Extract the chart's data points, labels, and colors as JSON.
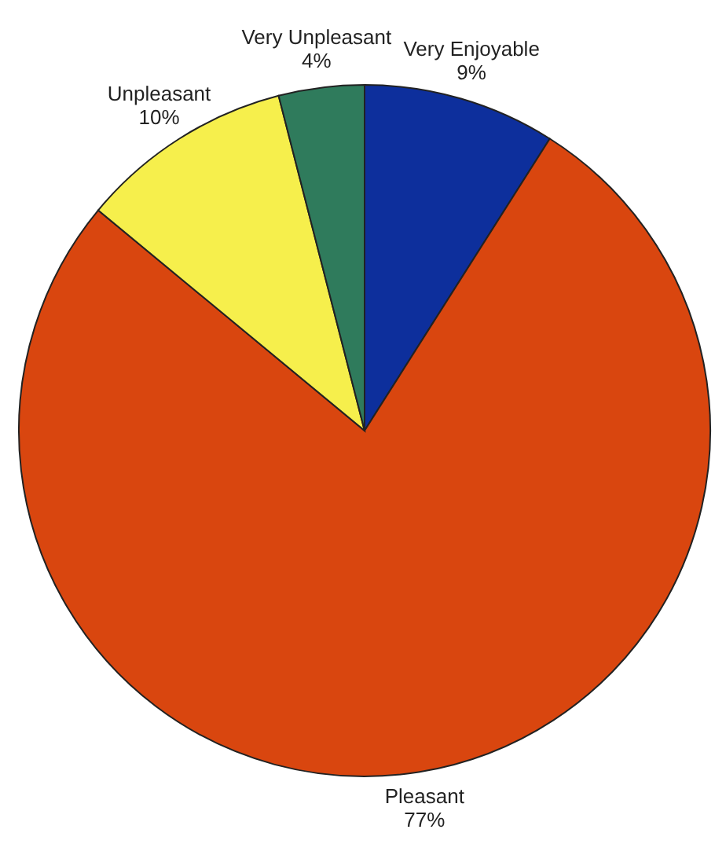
{
  "chart_data": {
    "type": "pie",
    "categories": [
      "Very Enjoyable",
      "Pleasant",
      "Unpleasant",
      "Very Unpleasant"
    ],
    "values": [
      9,
      77,
      10,
      4
    ],
    "colors": [
      "#0d2f9c",
      "#d9460f",
      "#f6ef4c",
      "#2f7b5c"
    ],
    "value_labels": [
      "9%",
      "77%",
      "10%",
      "4%"
    ]
  }
}
